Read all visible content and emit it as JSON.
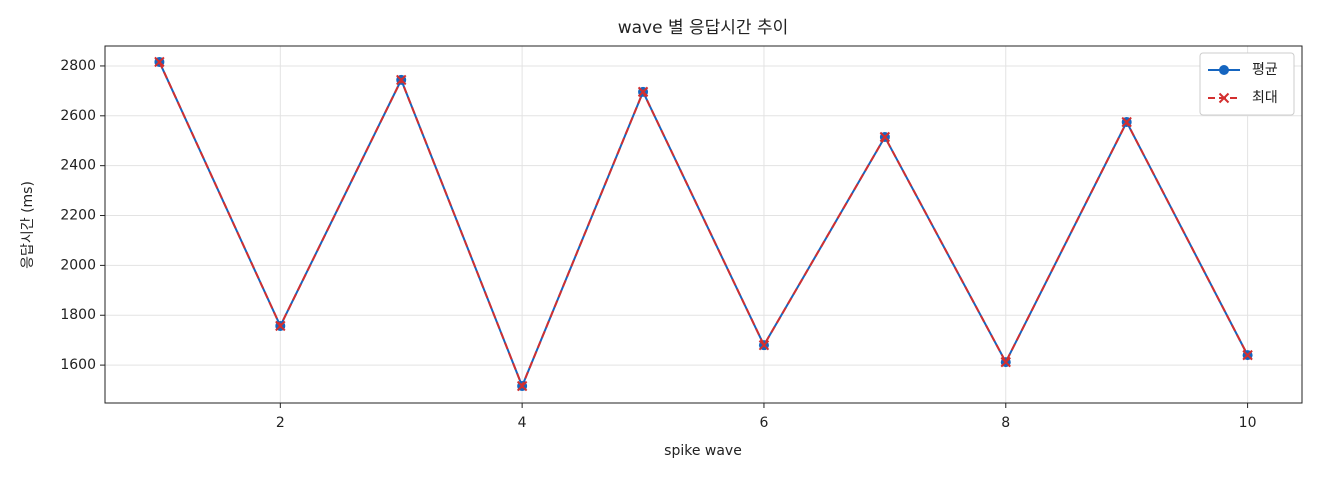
{
  "chart_data": {
    "type": "line",
    "title": "wave 별 응답시간 추이",
    "x_label": "spike wave",
    "y_label": "응답시간 (ms)",
    "x": [
      1,
      2,
      3,
      4,
      5,
      6,
      7,
      8,
      9,
      10
    ],
    "series": [
      {
        "name": "평균",
        "color": "#1565c0",
        "marker": "circle",
        "dash": "solid",
        "values": [
          2816,
          1757,
          2744,
          1516,
          2696,
          1680,
          2515,
          1612,
          2575,
          1640
        ]
      },
      {
        "name": "최대",
        "color": "#d32f2f",
        "marker": "x",
        "dash": "dashed",
        "values": [
          2816,
          1757,
          2744,
          1516,
          2696,
          1680,
          2515,
          1612,
          2575,
          1640
        ]
      }
    ],
    "xlim": [
      0.55,
      10.45
    ],
    "ylim": [
      1448,
      2880
    ],
    "xticks": [
      2,
      4,
      6,
      8,
      10
    ],
    "yticks": [
      1600,
      1800,
      2000,
      2200,
      2400,
      2600,
      2800
    ],
    "grid": true,
    "legend": "upper right"
  }
}
